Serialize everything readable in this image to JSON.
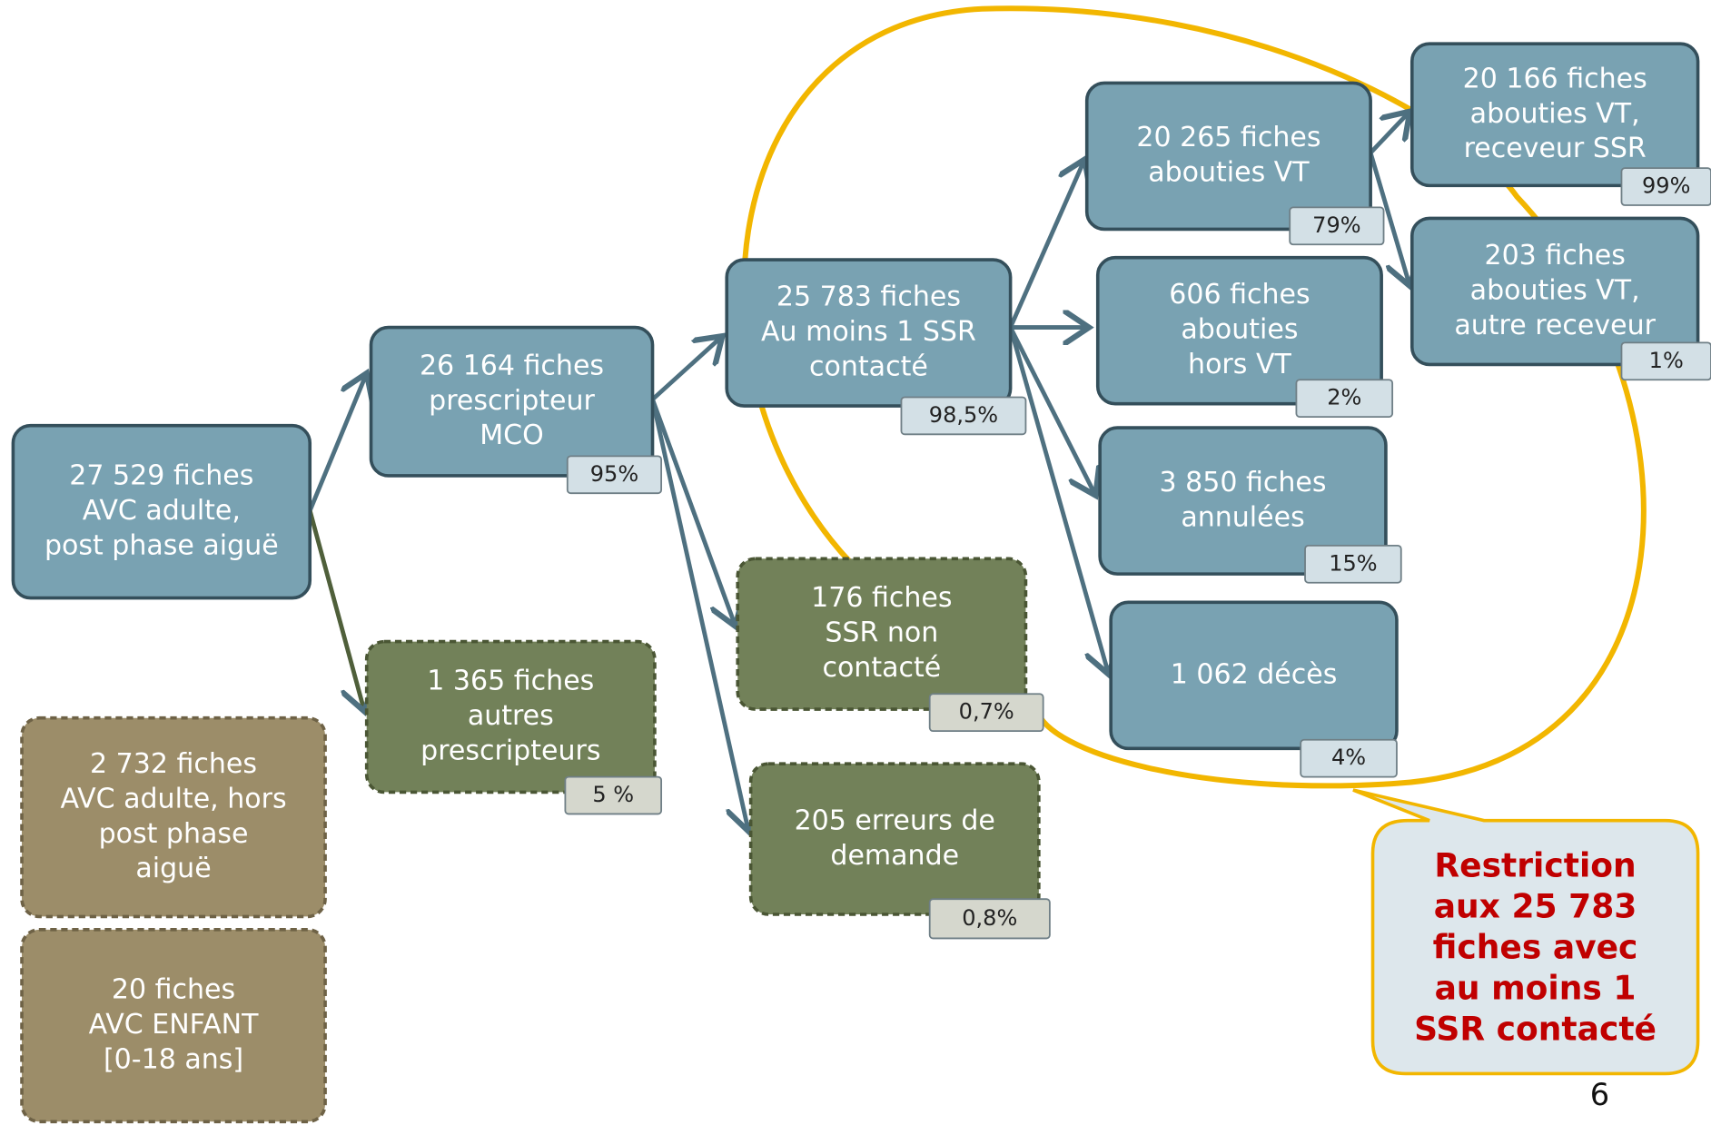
{
  "nodes": [
    {
      "lines": [
        "27 529 fiches",
        "AVC adulte,",
        "post phase aiguë"
      ]
    },
    {
      "lines": [
        "26 164 fiches",
        "prescripteur",
        "MCO"
      ],
      "percent": "95%"
    },
    {
      "lines": [
        "1 365 fiches",
        "autres",
        "prescripteurs"
      ],
      "percent": "5 %"
    },
    {
      "lines": [
        "2 732 fiches",
        "AVC adulte, hors",
        "post phase",
        "aiguë"
      ]
    },
    {
      "lines": [
        "20 fiches",
        "AVC ENFANT",
        "[0-18 ans]"
      ]
    },
    {
      "lines": [
        "25 783 fiches",
        "Au moins 1 SSR",
        "contacté"
      ],
      "percent": "98,5%"
    },
    {
      "lines": [
        "176 fiches",
        "SSR non",
        "contacté"
      ],
      "percent": "0,7%"
    },
    {
      "lines": [
        "205 erreurs de",
        "demande"
      ],
      "percent": "0,8%"
    },
    {
      "lines": [
        "20 265 fiches",
        "abouties VT"
      ],
      "percent": "79%"
    },
    {
      "lines": [
        "606 fiches",
        "abouties",
        "hors VT"
      ],
      "percent": "2%"
    },
    {
      "lines": [
        "3 850 fiches",
        "annulées"
      ],
      "percent": "15%"
    },
    {
      "lines": [
        "1 062 décès"
      ],
      "percent": "4%"
    },
    {
      "lines": [
        "20 166 fiches",
        "abouties VT,",
        "receveur SSR"
      ],
      "percent": "99%"
    },
    {
      "lines": [
        "203 fiches",
        "abouties VT,",
        "autre receveur"
      ],
      "percent": "1%"
    }
  ],
  "callout": {
    "lines": [
      "Restriction",
      "aux 25 783",
      "fiches avec",
      "au moins 1",
      "SSR contacté"
    ]
  },
  "page_number": "6"
}
